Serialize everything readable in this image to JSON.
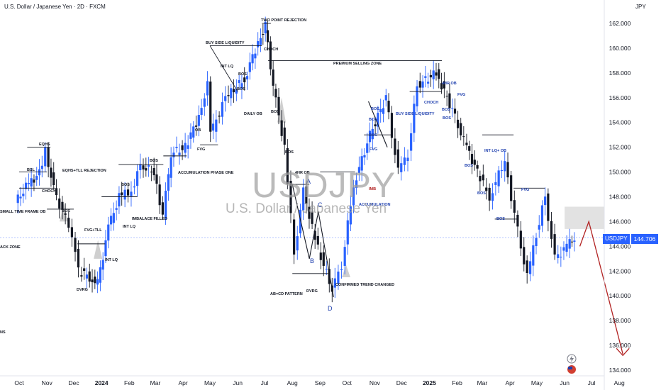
{
  "header": {
    "title": "U.S. Dollar / Japanese Yen · 2D · FXCM"
  },
  "axis": {
    "currency": "JPY"
  },
  "price_tag": {
    "symbol": "USDJPY",
    "value": "144.706"
  },
  "watermark": {
    "ticker": "USDJPY",
    "name": "U.S. Dollar / Japanese Yen"
  },
  "colors": {
    "bull": "#2962ff",
    "bear": "#131722",
    "arrow": "#b22222",
    "zone": "#e2e2e2"
  },
  "annotations": [
    "TWO POINT REJECTION",
    "BUY SIDE LIQUIDITY",
    "CHOCH",
    "INT LQ",
    "BOS",
    "DAILY OB",
    "PREMIUM SELLING ZONE",
    "EQHS",
    "BSL",
    "EQHS+TLL REJECTION",
    "CHOCH",
    "SMALL TIME FRAME OB",
    "BOS",
    "FVG",
    "OB",
    "ACCUMULATION PHASE ONE",
    "BOS",
    "IMBALACE FILLED",
    "INT LQ",
    "BOS",
    "FVG+TLL",
    "INT LQ",
    "DVRG",
    "4HR OB",
    "A",
    "C",
    "B",
    "D",
    "AB=CD PATTERN",
    "DVRG",
    "CONFIRMED TREND CHANGED",
    "ACCUMULATION",
    "IMB",
    "FVG",
    "BOS",
    "BOS",
    "BOS",
    "BUY SIDE LIQUIDITY",
    "4HR OB",
    "FVG",
    "CHOCH",
    "BOS",
    "BOS",
    "INT LQ+ OB",
    "BOS",
    "FVG",
    "BOS",
    "BOS",
    "ACK ZONE",
    "NS",
    "BOS",
    "BOS",
    "BOS"
  ],
  "chart_data": {
    "type": "candlestick",
    "title": "U.S. Dollar / Japanese Yen · 2D · FXCM",
    "xlabel": "",
    "ylabel": "JPY",
    "x_tick_labels": [
      "Oct",
      "Nov",
      "Dec",
      "2024",
      "Feb",
      "Mar",
      "Apr",
      "May",
      "Jun",
      "Jul",
      "Aug",
      "Sep",
      "Oct",
      "Nov",
      "Dec",
      "2025",
      "Feb",
      "Mar",
      "Apr",
      "May",
      "Jun",
      "Jul",
      "Aug"
    ],
    "y_tick_labels": [
      "134.000",
      "136.000",
      "138.000",
      "140.000",
      "142.000",
      "144.000",
      "146.000",
      "148.000",
      "150.000",
      "152.000",
      "154.000",
      "156.000",
      "158.000",
      "160.000",
      "162.000"
    ],
    "ylim": [
      133.2,
      162.7
    ],
    "last_price": 144.706,
    "close_series": [
      {
        "date": "2023-09-28",
        "close": 147.5
      },
      {
        "date": "2023-10-10",
        "close": 148.8
      },
      {
        "date": "2023-10-25",
        "close": 149.9
      },
      {
        "date": "2023-11-01",
        "close": 151.7
      },
      {
        "date": "2023-11-10",
        "close": 148.6
      },
      {
        "date": "2023-11-20",
        "close": 146.8
      },
      {
        "date": "2023-12-01",
        "close": 145.0
      },
      {
        "date": "2023-12-08",
        "close": 142.0
      },
      {
        "date": "2023-12-20",
        "close": 141.5
      },
      {
        "date": "2023-12-29",
        "close": 141.0
      },
      {
        "date": "2024-01-10",
        "close": 145.5
      },
      {
        "date": "2024-01-22",
        "close": 148.0
      },
      {
        "date": "2024-02-05",
        "close": 148.5
      },
      {
        "date": "2024-02-15",
        "close": 150.5
      },
      {
        "date": "2024-03-01",
        "close": 150.0
      },
      {
        "date": "2024-03-11",
        "close": 146.5
      },
      {
        "date": "2024-03-20",
        "close": 151.5
      },
      {
        "date": "2024-04-05",
        "close": 152.0
      },
      {
        "date": "2024-04-20",
        "close": 154.5
      },
      {
        "date": "2024-04-30",
        "close": 157.0
      },
      {
        "date": "2024-05-03",
        "close": 153.0
      },
      {
        "date": "2024-05-20",
        "close": 156.0
      },
      {
        "date": "2024-06-10",
        "close": 157.5
      },
      {
        "date": "2024-06-25",
        "close": 160.5
      },
      {
        "date": "2024-07-03",
        "close": 161.8
      },
      {
        "date": "2024-07-12",
        "close": 157.0
      },
      {
        "date": "2024-07-25",
        "close": 152.0
      },
      {
        "date": "2024-08-05",
        "close": 143.5
      },
      {
        "date": "2024-08-15",
        "close": 148.5
      },
      {
        "date": "2024-08-28",
        "close": 144.5
      },
      {
        "date": "2024-09-16",
        "close": 140.5
      },
      {
        "date": "2024-09-27",
        "close": 142.5
      },
      {
        "date": "2024-10-10",
        "close": 149.0
      },
      {
        "date": "2024-10-28",
        "close": 153.0
      },
      {
        "date": "2024-11-15",
        "close": 156.0
      },
      {
        "date": "2024-11-29",
        "close": 150.0
      },
      {
        "date": "2024-12-10",
        "close": 151.5
      },
      {
        "date": "2024-12-20",
        "close": 157.0
      },
      {
        "date": "2025-01-10",
        "close": 158.0
      },
      {
        "date": "2025-01-28",
        "close": 155.0
      },
      {
        "date": "2025-02-10",
        "close": 152.5
      },
      {
        "date": "2025-02-25",
        "close": 150.0
      },
      {
        "date": "2025-03-11",
        "close": 148.0
      },
      {
        "date": "2025-03-28",
        "close": 151.0
      },
      {
        "date": "2025-04-08",
        "close": 146.5
      },
      {
        "date": "2025-04-22",
        "close": 141.5
      },
      {
        "date": "2025-05-02",
        "close": 145.0
      },
      {
        "date": "2025-05-12",
        "close": 148.0
      },
      {
        "date": "2025-05-23",
        "close": 143.0
      },
      {
        "date": "2025-06-05",
        "close": 144.0
      },
      {
        "date": "2025-06-13",
        "close": 144.7
      }
    ],
    "premium_zone": {
      "from": "2025-06-01",
      "to": "2025-07-15",
      "low": 145.4,
      "high": 147.2
    },
    "projection": [
      {
        "date": "2025-06-18",
        "price": 144.0
      },
      {
        "date": "2025-06-28",
        "price": 146.0
      },
      {
        "date": "2025-08-05",
        "price": 135.3
      }
    ],
    "grid": false,
    "legend": "none"
  }
}
